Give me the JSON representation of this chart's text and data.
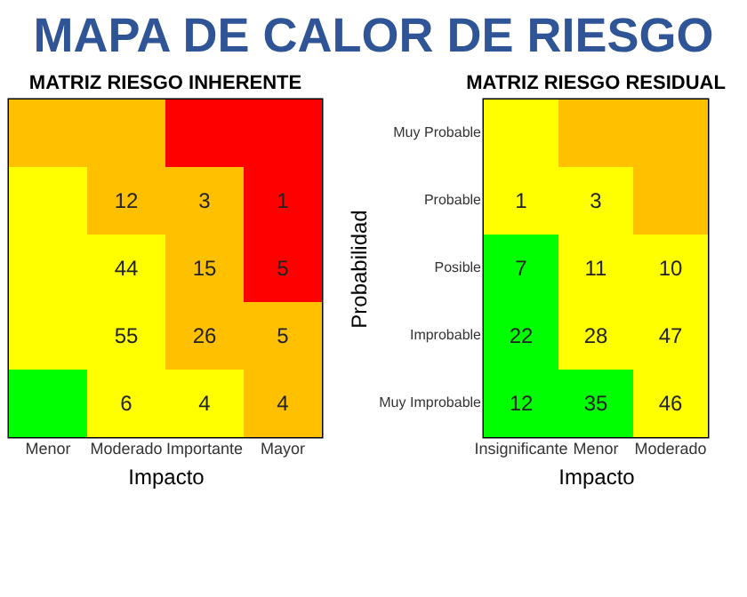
{
  "chart_data": [
    {
      "type": "heatmap",
      "title": "MAPA DE CALOR DE RIESGO",
      "subtitle": "MATRIZ RIESGO INHERENTE",
      "xlabel": "Impacto",
      "tick_labels": "x",
      "categories": [
        "Menor",
        "Moderado",
        "Importante",
        "Mayor"
      ],
      "y_categories": [
        "Muy Probable",
        "Probable",
        "Posible",
        "Improbable",
        "Muy Improbable"
      ],
      "data_labels": true,
      "cells": [
        [
          null,
          null,
          null,
          null
        ],
        [
          null,
          12,
          3,
          1
        ],
        [
          null,
          44,
          15,
          5
        ],
        [
          null,
          55,
          26,
          5
        ],
        [
          null,
          6,
          4,
          4
        ]
      ],
      "colors": [
        [
          "#ffc000",
          "#ffc000",
          "#ff0000",
          "#ff0000"
        ],
        [
          "#ffff00",
          "#ffc000",
          "#ffc000",
          "#ff0000"
        ],
        [
          "#ffff00",
          "#ffff00",
          "#ffc000",
          "#ff0000"
        ],
        [
          "#ffff00",
          "#ffff00",
          "#ffc000",
          "#ffc000"
        ],
        [
          "#00ff00",
          "#ffff00",
          "#ffff00",
          "#ffc000"
        ]
      ]
    },
    {
      "type": "heatmap",
      "subtitle": "MATRIZ RIESGO RESIDUAL",
      "xlabel": "Impacto",
      "ylabel": "Probabilidad",
      "categories": [
        "Insignificante",
        "Menor",
        "Moderado"
      ],
      "data_labels": true,
      "y_categories": [
        "Muy Probable",
        "Probable",
        "Posible",
        "Improbable",
        "Muy Improbable"
      ],
      "cells": [
        [
          null,
          null,
          null
        ],
        [
          1,
          3,
          null
        ],
        [
          7,
          11,
          10
        ],
        [
          22,
          28,
          47
        ],
        [
          12,
          35,
          46
        ]
      ],
      "colors": [
        [
          "#ffff00",
          "#ffc000",
          "#ffc000"
        ],
        [
          "#ffff00",
          "#ffff00",
          "#ffc000"
        ],
        [
          "#00ff00",
          "#ffff00",
          "#ffff00"
        ],
        [
          "#00ff00",
          "#ffff00",
          "#ffff00"
        ],
        [
          "#00ff00",
          "#00ff00",
          "#ffff00"
        ]
      ]
    }
  ]
}
